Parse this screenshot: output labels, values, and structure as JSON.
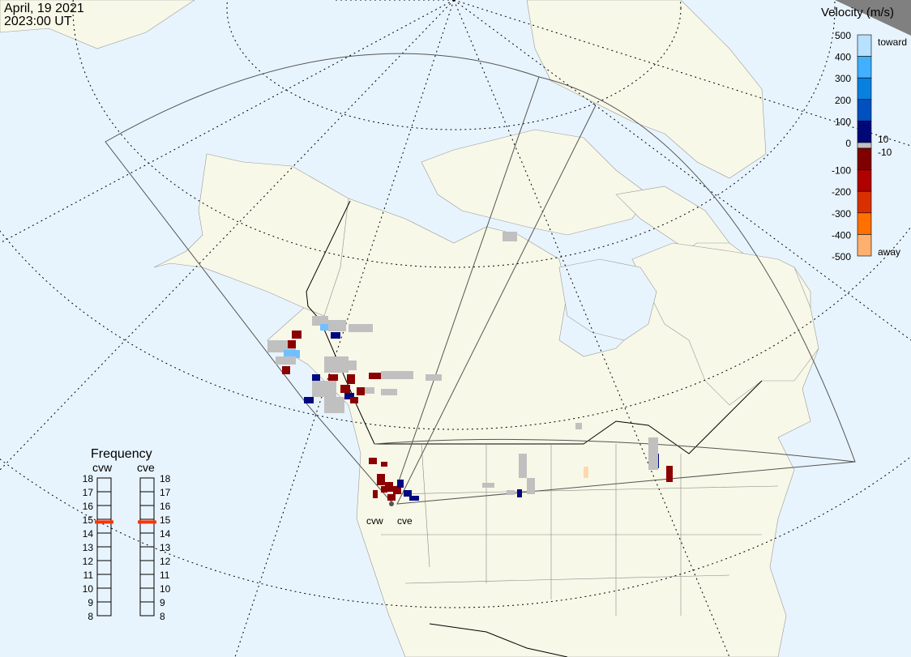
{
  "header": {
    "date": "April, 19 2021",
    "time": "2023:00 UT"
  },
  "colors": {
    "ocean": "#e8f4fd",
    "land": "#f8f8e8",
    "ground_scatter": "#c0c0c0"
  },
  "velocity_scale": {
    "title": "Velocity (m/s)",
    "ticks": [
      "500",
      "400",
      "300",
      "200",
      "100",
      "0",
      "-100",
      "-200",
      "-300",
      "-400",
      "-500"
    ],
    "toward_label": "toward",
    "away_label": "away",
    "threshold_pos": "10",
    "threshold_neg": "-10",
    "colors_toward": [
      "#b8e0ff",
      "#40b0ff",
      "#0880e0",
      "#0050c0",
      "#0028a0",
      "#000878"
    ],
    "colors_away": [
      "#800000",
      "#b00000",
      "#d83000",
      "#ff7000",
      "#ffb070",
      "#ffd8b0"
    ],
    "zero_color": "#c0c0c0"
  },
  "frequency": {
    "title": "Frequency",
    "radars": [
      {
        "name": "cvw",
        "value_mhz": 14.8
      },
      {
        "name": "cve",
        "value_mhz": 14.8
      }
    ],
    "ticks": [
      "18",
      "17",
      "16",
      "15",
      "14",
      "13",
      "12",
      "11",
      "10",
      "9",
      "8"
    ],
    "marker_color": "#ff3300"
  },
  "radar_labels": [
    "cvw",
    "cve"
  ]
}
